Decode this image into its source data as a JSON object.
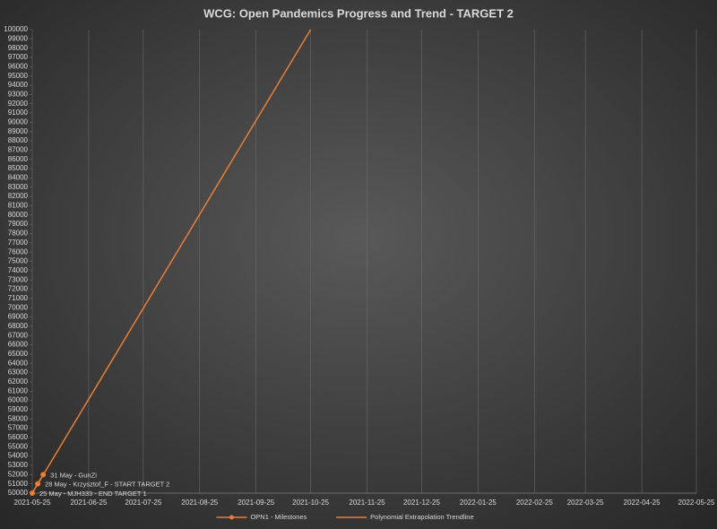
{
  "chart_data": {
    "type": "line",
    "title": "WCG: Open Pandemics Progress and Trend - TARGET 2",
    "xlim": [
      "2021-05-25",
      "2022-05-25"
    ],
    "xticks": [
      "2021-05-25",
      "2021-06-25",
      "2021-07-25",
      "2021-08-25",
      "2021-09-25",
      "2021-10-25",
      "2021-11-25",
      "2021-12-25",
      "2022-01-25",
      "2022-02-25",
      "2022-03-25",
      "2022-04-25",
      "2022-05-25"
    ],
    "ylim": [
      50000,
      100000
    ],
    "yticks": [
      50000,
      51000,
      52000,
      53000,
      54000,
      55000,
      56000,
      57000,
      58000,
      59000,
      60000,
      61000,
      62000,
      63000,
      64000,
      65000,
      66000,
      67000,
      68000,
      69000,
      70000,
      71000,
      72000,
      73000,
      74000,
      75000,
      76000,
      77000,
      78000,
      79000,
      80000,
      81000,
      82000,
      83000,
      84000,
      85000,
      86000,
      87000,
      88000,
      89000,
      90000,
      91000,
      92000,
      93000,
      94000,
      95000,
      96000,
      97000,
      98000,
      99000,
      100000
    ],
    "xgrid": true,
    "legend": "bottom",
    "series": [
      {
        "name": "OPN1 - Milestones",
        "color": "#ed7d31",
        "markers": true,
        "x": [
          "2021-05-25",
          "2021-05-28",
          "2021-05-31"
        ],
        "values": [
          50000,
          51000,
          52000
        ],
        "value_labels": [
          "25 May - MJH333 - END TARGET 1",
          "28 May - Krzysztof_F - START TARGET 2",
          "31 May - GunZi"
        ]
      },
      {
        "name": "Polynomial Extrapolation Trendline",
        "color": "#ed7d31",
        "markers": false,
        "x": [
          "2021-05-25",
          "2021-10-25"
        ],
        "values": [
          50000,
          100000
        ]
      }
    ]
  }
}
